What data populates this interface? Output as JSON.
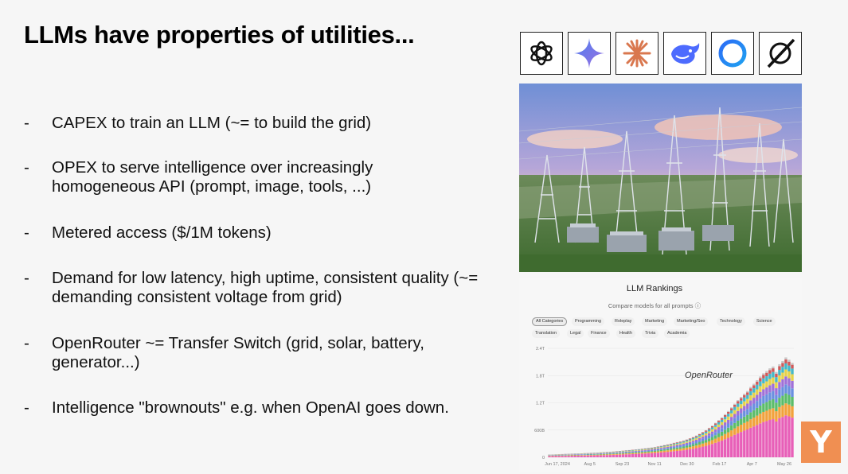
{
  "slide": {
    "title": "LLMs have properties of utilities...",
    "bullets": [
      {
        "dash": "-",
        "text": "CAPEX to train an LLM (~= to build the grid)"
      },
      {
        "dash": "-",
        "text": "OPEX to serve intelligence over increasingly homogeneous API (prompt, image, tools, ...)"
      },
      {
        "dash": "-",
        "text": "Metered access ($/1M tokens)"
      },
      {
        "dash": "-",
        "text": "Demand for low latency, high uptime, consistent quality (~= demanding consistent voltage from grid)"
      },
      {
        "dash": "-",
        "text": "OpenRouter ~= Transfer Switch (grid, solar, battery, generator...)"
      },
      {
        "dash": "-",
        "text": "Intelligence \"brownouts\" e.g. when OpenAI goes down."
      }
    ]
  },
  "logos": [
    "openai-logo",
    "gemini-logo",
    "claude-logo",
    "deepseek-logo",
    "meta-ring-logo",
    "grok-logo"
  ],
  "rankings": {
    "title": "LLM Rankings",
    "subtitle": "Compare models for all prompts ⓘ",
    "categories_row1": [
      "All Categories",
      "Programming",
      "Roleplay",
      "Marketing",
      "Marketing/Seo",
      "Technology",
      "Science"
    ],
    "categories_row2": [
      "Translation",
      "Legal",
      "Finance",
      "Health",
      "Trivia",
      "Academia"
    ],
    "active_category": "All Categories",
    "watermark": "OpenRouter"
  },
  "chart_data": {
    "type": "bar",
    "stacked": true,
    "y_ticks": [
      "0",
      "600B",
      "1.2T",
      "1.8T",
      "2.4T"
    ],
    "ylim": [
      0,
      2400000000000
    ],
    "x_ticks": [
      "Jun 17, 2024",
      "Aug 5",
      "Sep 23",
      "Nov 11",
      "Dec 30",
      "Feb 17",
      "Apr 7",
      "May 26"
    ],
    "series_colors": [
      "#e85fb8",
      "#f2a23c",
      "#5bbd6a",
      "#6a8fe0",
      "#a070d8",
      "#e6d24a",
      "#45b8c8",
      "#d05a5a",
      "#c9c9c9"
    ],
    "totals": [
      60,
      62,
      65,
      70,
      72,
      75,
      78,
      80,
      83,
      85,
      88,
      92,
      95,
      98,
      100,
      105,
      110,
      115,
      118,
      122,
      128,
      135,
      140,
      148,
      155,
      160,
      168,
      175,
      182,
      190,
      198,
      205,
      215,
      228,
      240,
      255,
      270,
      285,
      300,
      320,
      335,
      350,
      370,
      395,
      420,
      450,
      480,
      520,
      560,
      600,
      650,
      700,
      760,
      820,
      880,
      950,
      1020,
      1100,
      1180,
      1260,
      1330,
      1400,
      1460,
      1550,
      1620,
      1700,
      1780,
      1850,
      1900,
      1960,
      2000,
      1880,
      2050,
      2120,
      2200,
      2150,
      2080
    ],
    "mix": [
      0.42,
      0.12,
      0.1,
      0.09,
      0.08,
      0.07,
      0.06,
      0.04,
      0.02
    ]
  },
  "brand": {
    "letter": "Y",
    "color": "#f08f52"
  }
}
